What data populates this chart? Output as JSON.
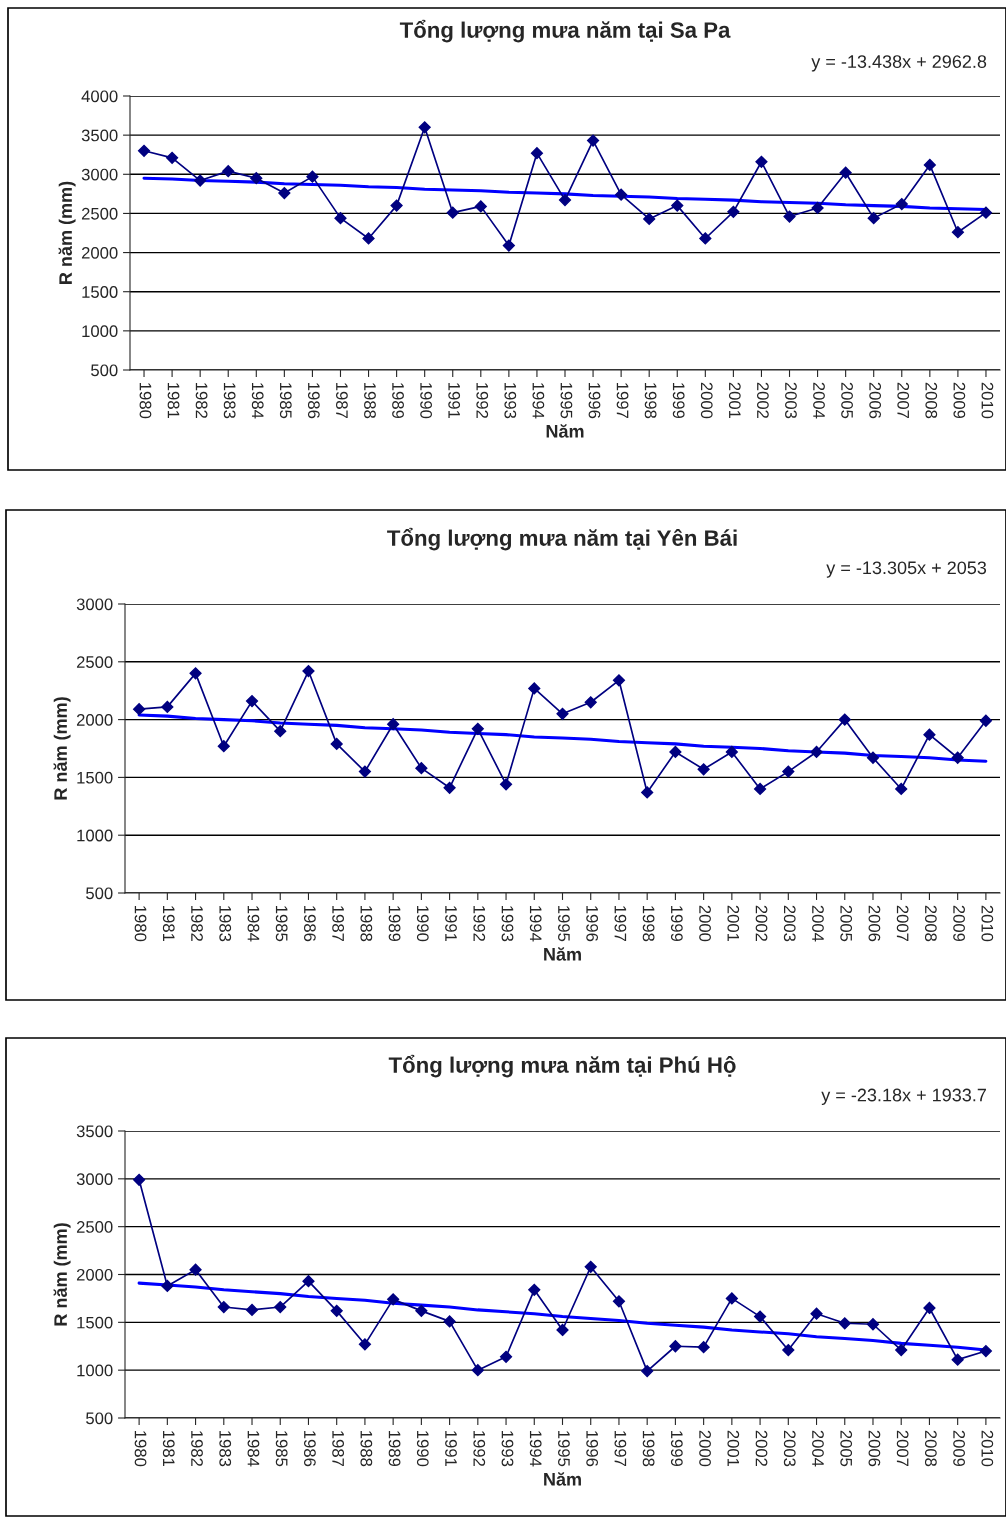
{
  "chart_data": [
    {
      "type": "line",
      "title": "Tổng lượng mưa năm tại Sa Pa",
      "xlabel": "Năm",
      "ylabel": "R năm (mm)",
      "categories": [
        "1980",
        "1981",
        "1982",
        "1983",
        "1984",
        "1985",
        "1986",
        "1987",
        "1988",
        "1989",
        "1990",
        "1991",
        "1992",
        "1993",
        "1994",
        "1995",
        "1996",
        "1997",
        "1998",
        "1999",
        "2000",
        "2001",
        "2002",
        "2003",
        "2004",
        "2005",
        "2006",
        "2007",
        "2008",
        "2009",
        "2010"
      ],
      "ylim": [
        500,
        4000
      ],
      "yticks": [
        500,
        1000,
        1500,
        2000,
        2500,
        3000,
        3500,
        4000
      ],
      "grid": "y",
      "legend": false,
      "annotations": [
        "y = -13.438x + 2962.8"
      ],
      "series": [
        {
          "color": "#000080",
          "marker": "diamond",
          "values": [
            3300,
            3210,
            2920,
            3040,
            2950,
            2760,
            2970,
            2440,
            2180,
            2600,
            3600,
            2510,
            2590,
            2090,
            3270,
            2670,
            3430,
            2740,
            2430,
            2600,
            2180,
            2520,
            3160,
            2460,
            2570,
            3020,
            2440,
            2620,
            3120,
            2260,
            2510
          ]
        },
        {
          "color": "#0000ff",
          "marker": "none",
          "values": [
            2950,
            2940,
            2920,
            2910,
            2900,
            2880,
            2870,
            2860,
            2840,
            2830,
            2810,
            2800,
            2790,
            2770,
            2760,
            2750,
            2730,
            2720,
            2710,
            2690,
            2680,
            2670,
            2650,
            2640,
            2630,
            2610,
            2600,
            2590,
            2570,
            2560,
            2550
          ]
        }
      ]
    },
    {
      "type": "line",
      "title": "Tổng lượng mưa năm tại Yên Bái",
      "xlabel": "Năm",
      "ylabel": "R năm (mm)",
      "categories": [
        "1980",
        "1981",
        "1982",
        "1983",
        "1984",
        "1985",
        "1986",
        "1987",
        "1988",
        "1989",
        "1990",
        "1991",
        "1992",
        "1993",
        "1994",
        "1995",
        "1996",
        "1997",
        "1998",
        "1999",
        "2000",
        "2001",
        "2002",
        "2003",
        "2004",
        "2005",
        "2006",
        "2007",
        "2008",
        "2009",
        "2010"
      ],
      "ylim": [
        500,
        3000
      ],
      "yticks": [
        500,
        1000,
        1500,
        2000,
        2500,
        3000
      ],
      "grid": "y",
      "legend": false,
      "annotations": [
        "y = -13.305x + 2053"
      ],
      "series": [
        {
          "color": "#000080",
          "marker": "diamond",
          "values": [
            2090,
            2110,
            2400,
            1770,
            2160,
            1900,
            2420,
            1790,
            1550,
            1960,
            1580,
            1410,
            1920,
            1440,
            2270,
            2050,
            2150,
            2340,
            1370,
            1720,
            1570,
            1720,
            1400,
            1550,
            1720,
            2000,
            1670,
            1400,
            1870,
            1670,
            1990
          ]
        },
        {
          "color": "#0000ff",
          "marker": "none",
          "values": [
            2040,
            2030,
            2010,
            2000,
            1990,
            1970,
            1960,
            1950,
            1930,
            1920,
            1910,
            1890,
            1880,
            1870,
            1850,
            1840,
            1830,
            1810,
            1800,
            1790,
            1770,
            1760,
            1750,
            1730,
            1720,
            1710,
            1690,
            1680,
            1670,
            1650,
            1640
          ]
        }
      ]
    },
    {
      "type": "line",
      "title": "Tổng lượng mưa năm tại Phú Hộ",
      "xlabel": "Năm",
      "ylabel": "R năm (mm)",
      "categories": [
        "1980",
        "1981",
        "1982",
        "1983",
        "1984",
        "1985",
        "1986",
        "1987",
        "1988",
        "1989",
        "1990",
        "1991",
        "1992",
        "1993",
        "1994",
        "1995",
        "1996",
        "1997",
        "1998",
        "1999",
        "2000",
        "2001",
        "2002",
        "2003",
        "2004",
        "2005",
        "2006",
        "2007",
        "2008",
        "2009",
        "2010"
      ],
      "ylim": [
        500,
        3500
      ],
      "yticks": [
        500,
        1000,
        1500,
        2000,
        2500,
        3000,
        3500
      ],
      "grid": "y",
      "legend": false,
      "annotations": [
        "y = -23.18x + 1933.7"
      ],
      "series": [
        {
          "color": "#000080",
          "marker": "diamond",
          "values": [
            2990,
            1880,
            2050,
            1660,
            1630,
            1660,
            1930,
            1620,
            1270,
            1740,
            1620,
            1510,
            1000,
            1140,
            1840,
            1420,
            2080,
            1720,
            990,
            1250,
            1240,
            1750,
            1560,
            1210,
            1590,
            1490,
            1480,
            1210,
            1650,
            1110,
            1200
          ]
        },
        {
          "color": "#0000ff",
          "marker": "none",
          "values": [
            1910,
            1890,
            1870,
            1840,
            1820,
            1800,
            1770,
            1750,
            1730,
            1700,
            1680,
            1660,
            1630,
            1610,
            1590,
            1560,
            1540,
            1520,
            1490,
            1470,
            1450,
            1420,
            1400,
            1380,
            1350,
            1330,
            1310,
            1280,
            1260,
            1240,
            1210
          ]
        }
      ]
    }
  ]
}
